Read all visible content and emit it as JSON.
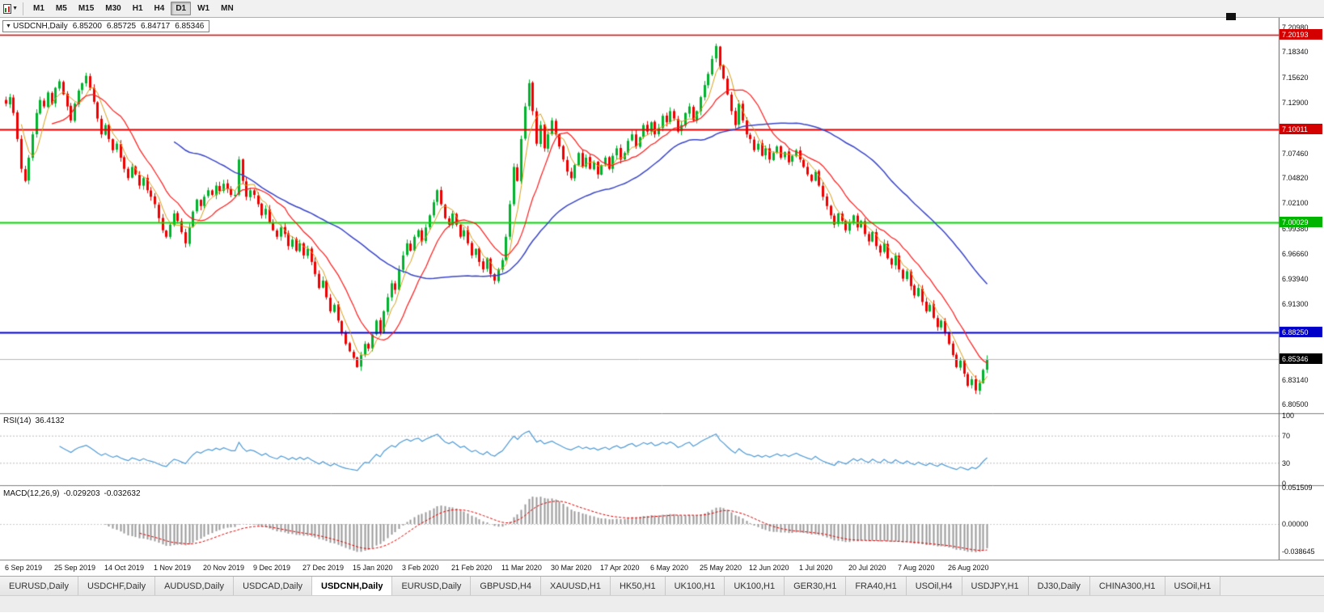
{
  "icons": {
    "dropdown": "▼"
  },
  "toolbar": {
    "timeframes": [
      "M1",
      "M5",
      "M15",
      "M30",
      "H1",
      "H4",
      "D1",
      "W1",
      "MN"
    ],
    "active_timeframe": "D1"
  },
  "symbol_box": {
    "symbol": "USDCNH,Daily",
    "open": "6.85200",
    "high": "6.85725",
    "low": "6.84717",
    "close": "6.85346"
  },
  "rsi_panel": {
    "name": "RSI(14)",
    "value": "36.4132",
    "scale": [
      {
        "label": "100",
        "v": 100
      },
      {
        "label": "70",
        "v": 70
      },
      {
        "label": "30",
        "v": 30
      },
      {
        "label": "0",
        "v": 0
      }
    ]
  },
  "macd_panel": {
    "name": "MACD(12,26,9)",
    "main_value": "-0.029203",
    "signal_value": "-0.032632",
    "scale": [
      {
        "label": "0.051509",
        "v": 0.051509
      },
      {
        "label": "0.00000",
        "v": 0
      },
      {
        "label": "-0.038645",
        "v": -0.038645
      }
    ]
  },
  "price_axis": {
    "plain": [
      {
        "label": "7.20980",
        "price": 7.2098
      },
      {
        "label": "7.18340",
        "price": 7.1834
      },
      {
        "label": "7.15620",
        "price": 7.1562
      },
      {
        "label": "7.12900",
        "price": 7.129
      },
      {
        "label": "7.07460",
        "price": 7.0746
      },
      {
        "label": "7.04820",
        "price": 7.0482
      },
      {
        "label": "7.02100",
        "price": 7.021
      },
      {
        "label": "6.99380",
        "price": 6.9938
      },
      {
        "label": "6.96660",
        "price": 6.9666
      },
      {
        "label": "6.93940",
        "price": 6.9394
      },
      {
        "label": "6.91300",
        "price": 6.913
      },
      {
        "label": "6.83140",
        "price": 6.8314
      },
      {
        "label": "6.80500",
        "price": 6.805
      }
    ],
    "badges": [
      {
        "label": "7.20193",
        "price": 7.20193,
        "bg": "#d40000"
      },
      {
        "label": "7.10011",
        "price": 7.10011,
        "bg": "#d40000"
      },
      {
        "label": "7.00029",
        "price": 7.00029,
        "bg": "#00b400"
      },
      {
        "label": "6.88250",
        "price": 6.8825,
        "bg": "#0000c8"
      },
      {
        "label": "6.85346",
        "price": 6.85346,
        "bg": "#000000"
      }
    ]
  },
  "dates": [
    "6 Sep 2019",
    "25 Sep 2019",
    "14 Oct 2019",
    "1 Nov 2019",
    "20 Nov 2019",
    "9 Dec 2019",
    "27 Dec 2019",
    "15 Jan 2020",
    "3 Feb 2020",
    "21 Feb 2020",
    "11 Mar 2020",
    "30 Mar 2020",
    "17 Apr 2020",
    "6 May 2020",
    "25 May 2020",
    "12 Jun 2020",
    "1 Jul 2020",
    "20 Jul 2020",
    "7 Aug 2020",
    "26 Aug 2020"
  ],
  "tabs": {
    "active_index": 4,
    "items": [
      "EURUSD,Daily",
      "USDCHF,Daily",
      "AUDUSD,Daily",
      "USDCAD,Daily",
      "USDCNH,Daily",
      "EURUSD,Daily",
      "GBPUSD,H4",
      "XAUUSD,H1",
      "HK50,H1",
      "UK100,H1",
      "UK100,H1",
      "GER30,H1",
      "FRA40,H1",
      "USOil,H4",
      "USDJPY,H1",
      "DJ30,Daily",
      "CHINA300,H1",
      "USOil,H1"
    ],
    "active_label": "USDCNH,Daily"
  },
  "chart_data": {
    "type": "candlestick",
    "symbol": "USDCNH",
    "timeframe": "Daily",
    "title": "USDCNH,Daily",
    "current_bar": {
      "open": 6.852,
      "high": 6.85725,
      "low": 6.84717,
      "close": 6.85346
    },
    "y_range": [
      6.805,
      7.2098
    ],
    "candles_per_x_label": 13,
    "x_labels_key": "dates",
    "closes": [
      7.128,
      7.135,
      7.118,
      7.09,
      7.058,
      7.045,
      7.07,
      7.095,
      7.118,
      7.132,
      7.125,
      7.14,
      7.128,
      7.145,
      7.152,
      7.138,
      7.125,
      7.11,
      7.128,
      7.142,
      7.15,
      7.158,
      7.145,
      7.13,
      7.112,
      7.095,
      7.105,
      7.09,
      7.078,
      7.085,
      7.07,
      7.058,
      7.048,
      7.06,
      7.052,
      7.04,
      7.048,
      7.035,
      7.028,
      7.02,
      7.005,
      6.992,
      6.985,
      6.998,
      7.01,
      7.002,
      6.99,
      6.978,
      6.995,
      7.012,
      7.025,
      7.018,
      7.028,
      7.035,
      7.03,
      7.04,
      7.034,
      7.042,
      7.036,
      7.03,
      7.03,
      7.068,
      7.045,
      7.028,
      7.035,
      7.03,
      7.02,
      7.008,
      7.015,
      7.0,
      6.992,
      6.985,
      6.995,
      6.988,
      6.975,
      6.982,
      6.97,
      6.978,
      6.965,
      6.972,
      6.958,
      6.945,
      6.93,
      6.938,
      6.92,
      6.905,
      6.912,
      6.895,
      6.882,
      6.87,
      6.862,
      6.855,
      6.845,
      6.858,
      6.87,
      6.865,
      6.88,
      6.895,
      6.882,
      6.905,
      6.92,
      6.935,
      6.928,
      6.95,
      6.965,
      6.978,
      6.97,
      6.985,
      6.992,
      6.98,
      6.995,
      7.008,
      7.022,
      7.035,
      7.02,
      7.005,
      6.998,
      7.01,
      6.998,
      6.985,
      6.992,
      6.978,
      6.965,
      6.972,
      6.958,
      6.95,
      6.962,
      6.945,
      6.938,
      6.95,
      6.96,
      6.985,
      7.02,
      7.06,
      7.045,
      7.09,
      7.125,
      7.15,
      7.12,
      7.085,
      7.105,
      7.08,
      7.095,
      7.11,
      7.095,
      7.082,
      7.068,
      7.055,
      7.048,
      7.062,
      7.075,
      7.06,
      7.07,
      7.058,
      7.065,
      7.052,
      7.062,
      7.07,
      7.058,
      7.072,
      7.08,
      7.068,
      7.075,
      7.088,
      7.095,
      7.082,
      7.092,
      7.105,
      7.098,
      7.108,
      7.095,
      7.102,
      7.115,
      7.108,
      7.12,
      7.112,
      7.098,
      7.105,
      7.118,
      7.125,
      7.11,
      7.12,
      7.135,
      7.148,
      7.16,
      7.176,
      7.19,
      7.168,
      7.155,
      7.138,
      7.12,
      7.105,
      7.128,
      7.11,
      7.095,
      7.09,
      7.078,
      7.085,
      7.072,
      7.08,
      7.068,
      7.075,
      7.082,
      7.07,
      7.076,
      7.065,
      7.072,
      7.078,
      7.068,
      7.06,
      7.052,
      7.045,
      7.055,
      7.04,
      7.028,
      7.018,
      7.008,
      6.998,
      7.01,
      7.002,
      6.992,
      7.0,
      7.008,
      6.995,
      7.002,
      6.988,
      6.98,
      6.99,
      6.975,
      6.968,
      6.978,
      6.962,
      6.955,
      6.965,
      6.95,
      6.94,
      6.948,
      6.932,
      6.922,
      6.93,
      6.915,
      6.905,
      6.912,
      6.898,
      6.888,
      6.895,
      6.882,
      6.87,
      6.858,
      6.845,
      6.852,
      6.838,
      6.825,
      6.832,
      6.82,
      6.828,
      6.842,
      6.8535
    ],
    "levels": [
      {
        "price": 7.20193,
        "color": "#e00000",
        "width": 1.5
      },
      {
        "price": 7.10011,
        "color": "#e00000",
        "width": 2
      },
      {
        "price": 7.00029,
        "color": "#00dc00",
        "width": 2
      },
      {
        "price": 6.8825,
        "color": "#0000e0",
        "width": 2
      },
      {
        "price": 6.85346,
        "color": "#b8b8b8",
        "width": 1
      }
    ],
    "moving_averages": [
      {
        "period": 5,
        "color": "#d8a018",
        "width": 1
      },
      {
        "period": 13,
        "color": "#ff1a1a",
        "width": 1.2
      },
      {
        "period": 45,
        "color": "#3a46c8",
        "width": 1.5
      }
    ],
    "up_color": "#00b22d",
    "down_color": "#ee0000",
    "rsi": {
      "period": 14,
      "current": 36.4132,
      "overbought": 70,
      "oversold": 30,
      "color": "#4f9bd5"
    },
    "macd": {
      "fast": 12,
      "slow": 26,
      "signal": 9,
      "main": -0.029203,
      "signal_value": -0.032632,
      "hist_color": "#9a9a9a",
      "signal_color": "#e00000"
    }
  }
}
